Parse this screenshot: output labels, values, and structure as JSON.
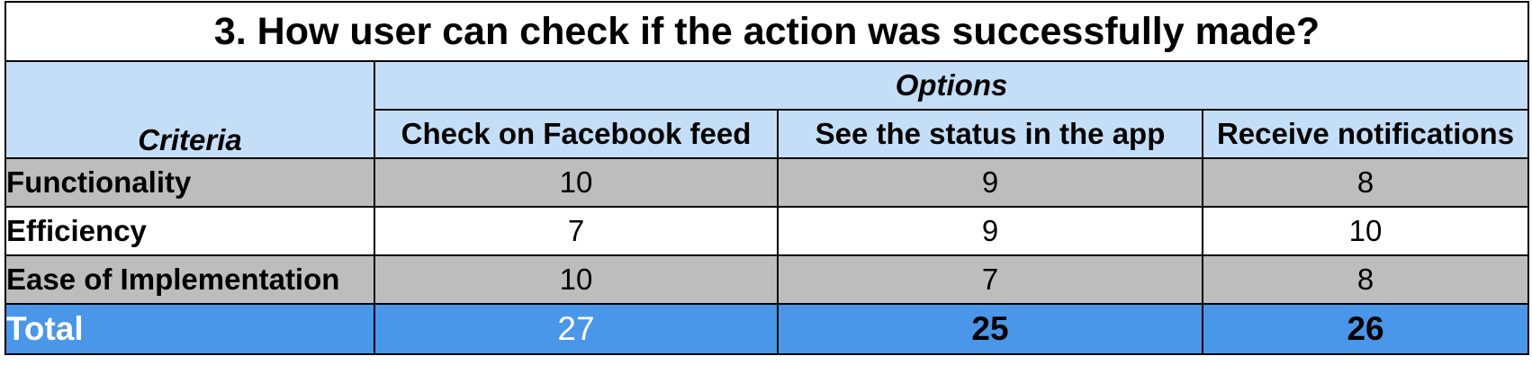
{
  "title": "3. How user can check if the action was successfully made?",
  "header": {
    "options_label": "Options",
    "criteria_label": "Criteria",
    "options": [
      "Check on Facebook feed",
      "See the status in the app",
      "Receive notifications"
    ]
  },
  "rows": [
    {
      "criteria": "Functionality",
      "values": [
        "10",
        "9",
        "8"
      ]
    },
    {
      "criteria": "Efficiency",
      "values": [
        "7",
        "9",
        "10"
      ]
    },
    {
      "criteria": "Ease of Implementation",
      "values": [
        "10",
        "7",
        "8"
      ]
    }
  ],
  "total": {
    "label": "Total",
    "values": [
      "27",
      "25",
      "26"
    ]
  },
  "colors": {
    "header_bg": "#c5def7",
    "gray_row_bg": "#bdbdbd",
    "total_bg": "#4a96e8"
  }
}
